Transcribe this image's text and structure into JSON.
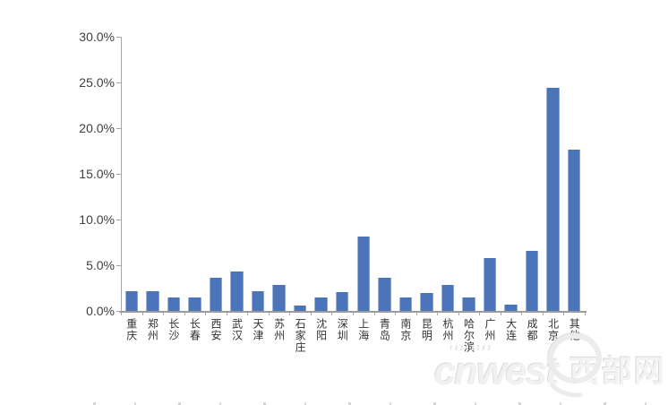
{
  "chart_data": {
    "type": "bar",
    "title": "",
    "xlabel": "",
    "ylabel": "",
    "categories": [
      "重庆",
      "郑州",
      "长沙",
      "长春",
      "西安",
      "武汉",
      "天津",
      "苏州",
      "石家庄",
      "沈阳",
      "深圳",
      "上海",
      "青岛",
      "南京",
      "昆明",
      "杭州",
      "哈尔滨",
      "广州",
      "大连",
      "成都",
      "北京",
      "其他"
    ],
    "values": [
      2.2,
      2.2,
      1.5,
      1.5,
      3.6,
      4.3,
      2.2,
      2.8,
      0.6,
      1.5,
      2.1,
      8.1,
      3.6,
      1.5,
      2.0,
      2.8,
      1.5,
      5.8,
      0.7,
      6.6,
      24.4,
      17.6
    ],
    "ylim": [
      0,
      30
    ],
    "ytick_step": 5,
    "ytick_labels": [
      "0.0%",
      "5.0%",
      "10.0%",
      "15.0%",
      "20.0%",
      "25.0%",
      "30.0%"
    ],
    "grid": false,
    "legend": "none",
    "bar_color": "#4C74B9",
    "axis_color": "#A6A6A6"
  },
  "watermark": {
    "logo_text": "cnwest",
    "cn_text": "西部网"
  }
}
